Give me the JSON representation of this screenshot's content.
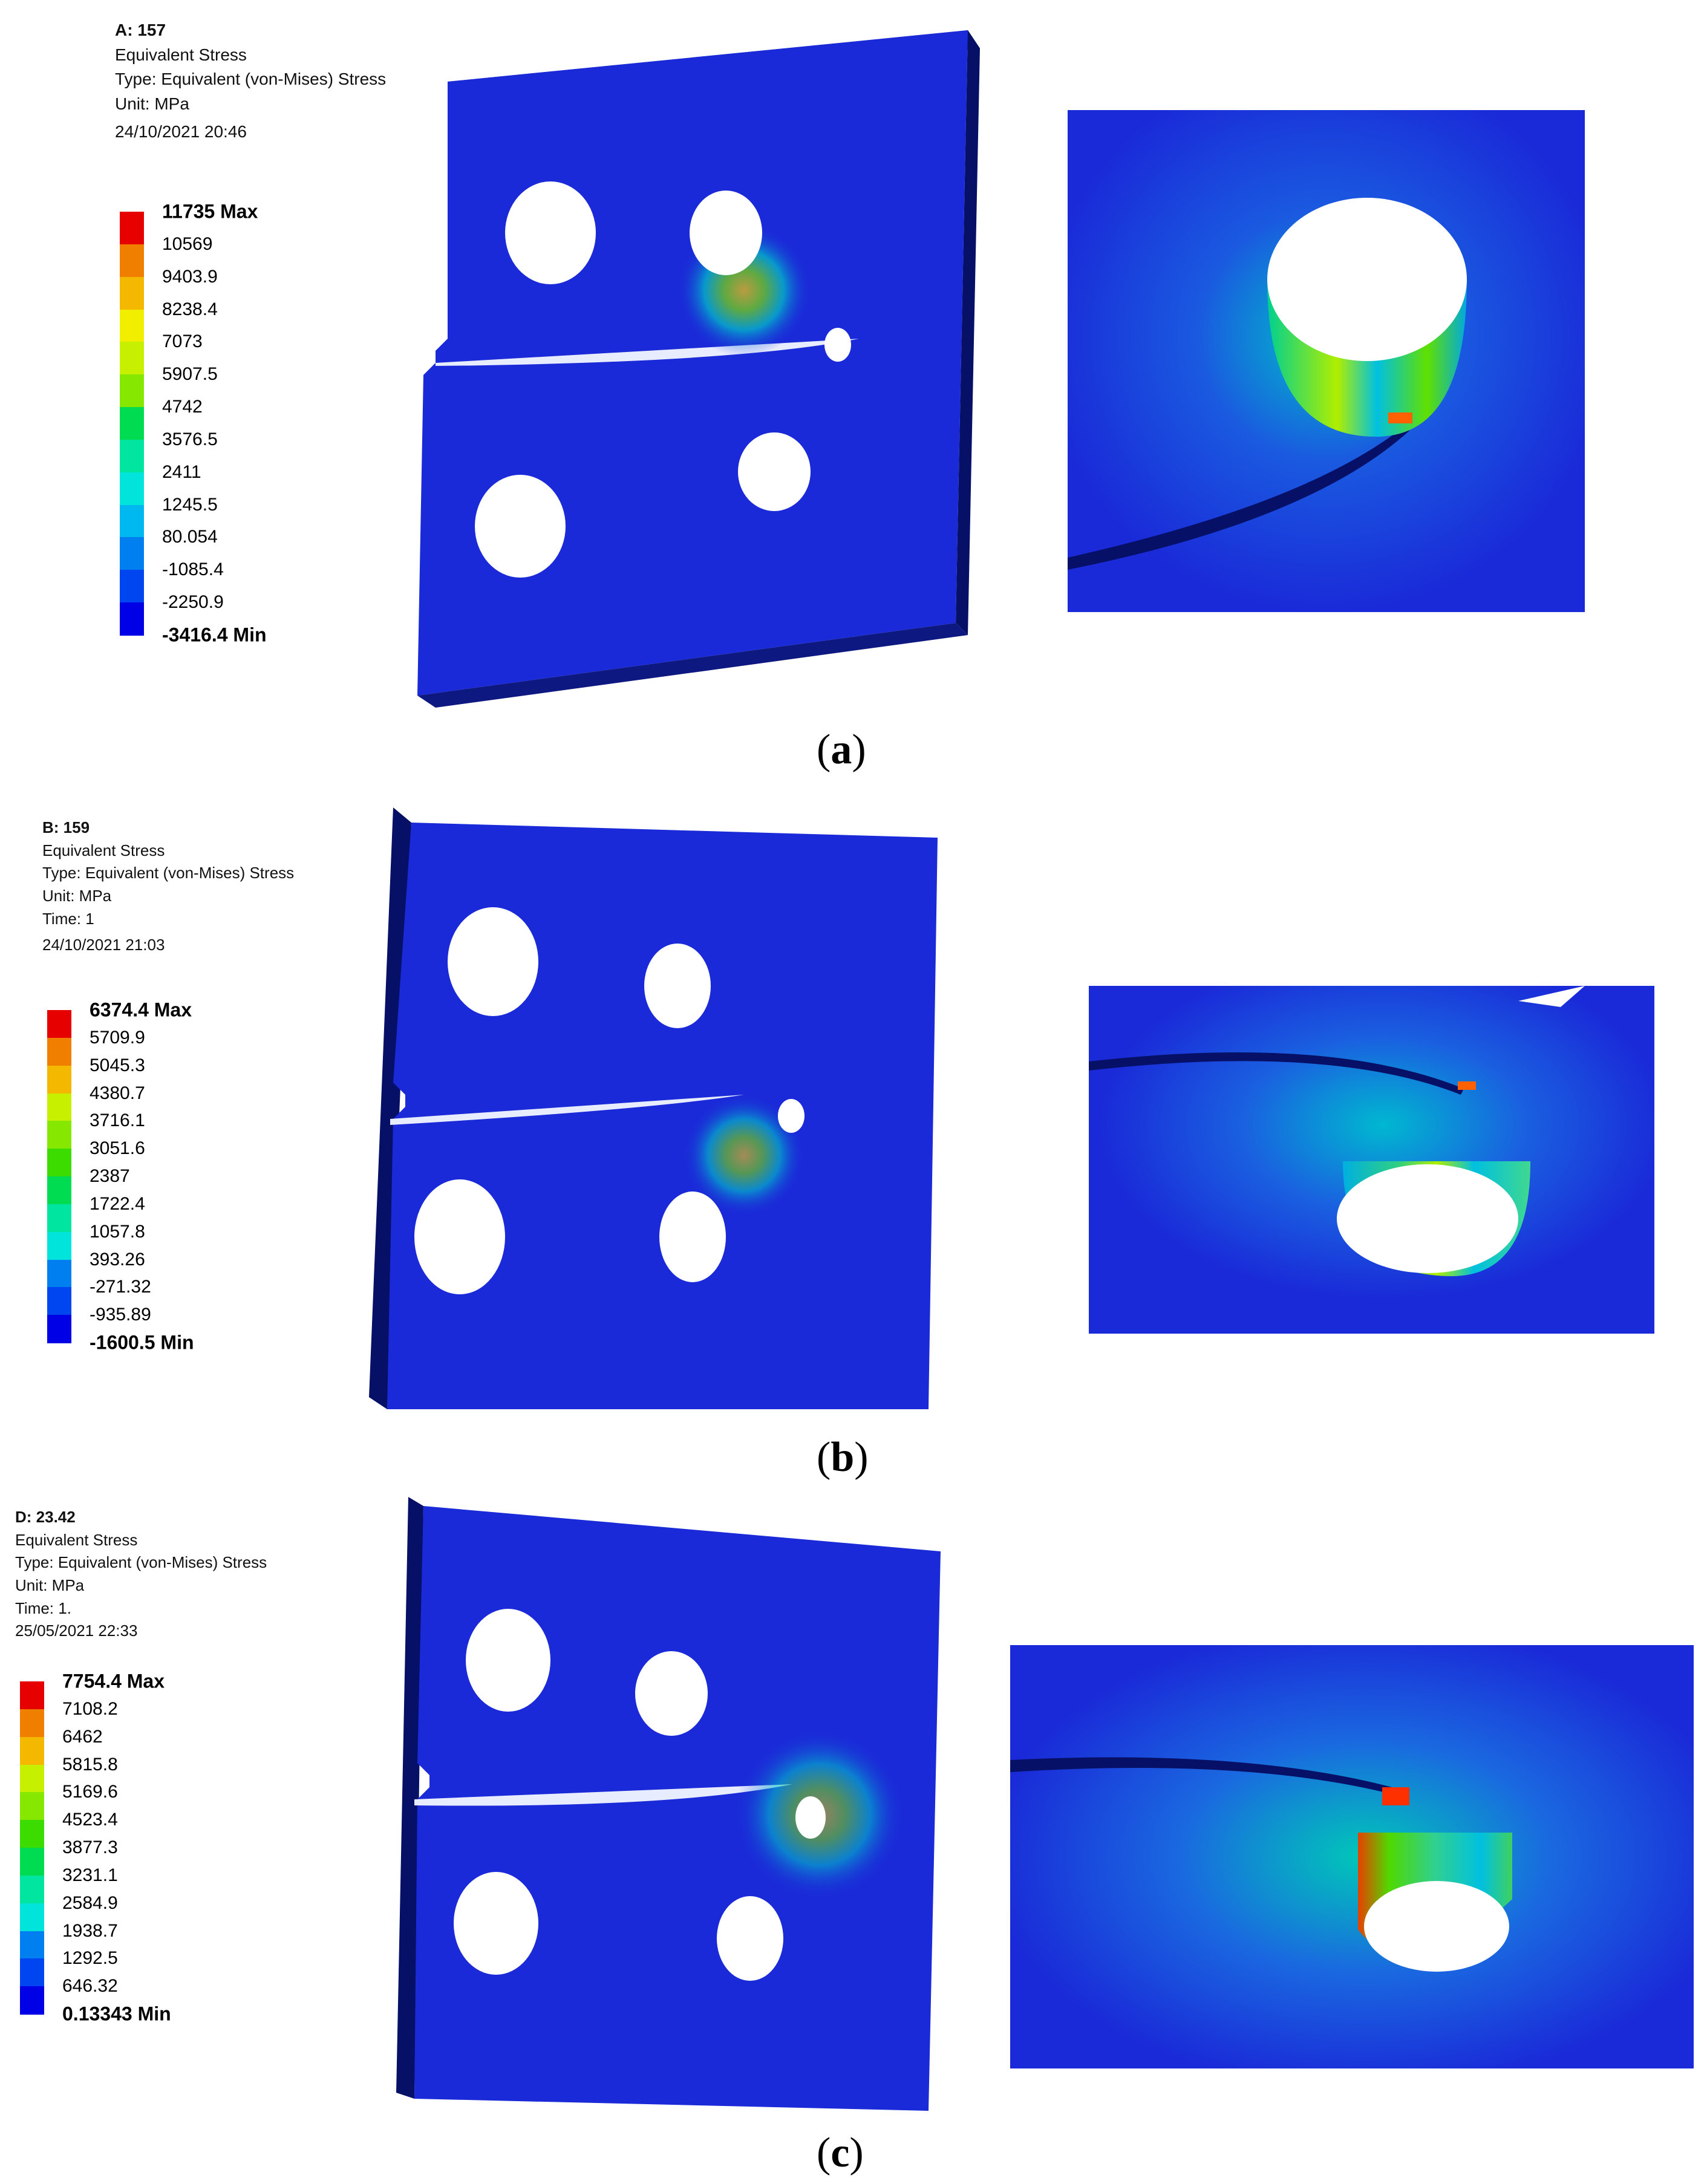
{
  "panels": [
    {
      "id": "a",
      "caption_letter": "a",
      "header": {
        "title": "A: 157",
        "line1": "Equivalent Stress",
        "line2": "Type: Equivalent (von-Mises) Stress",
        "line3": "Unit: MPa",
        "line4": "",
        "date": "24/10/2021 20:46"
      },
      "legend": [
        "11735 Max",
        "10569",
        "9403.9",
        "8238.4",
        "7073",
        "5907.5",
        "4742",
        "3576.5",
        "2411",
        "1245.5",
        "80.054",
        "-1085.4",
        "-2250.9",
        "-3416.4 Min"
      ]
    },
    {
      "id": "b",
      "caption_letter": "b",
      "header": {
        "title": "B: 159",
        "line1": "Equivalent Stress",
        "line2": "Type: Equivalent (von-Mises) Stress",
        "line3": "Unit: MPa",
        "line4": "Time: 1",
        "date": "24/10/2021 21:03"
      },
      "legend": [
        "6374.4 Max",
        "5709.9",
        "5045.3",
        "4380.7",
        "3716.1",
        "3051.6",
        "2387",
        "1722.4",
        "1057.8",
        "393.26",
        "-271.32",
        "-935.89",
        "-1600.5 Min"
      ]
    },
    {
      "id": "c",
      "caption_letter": "c",
      "header": {
        "title": "D: 23.42",
        "line1": "Equivalent Stress",
        "line2": "Type: Equivalent (von-Mises) Stress",
        "line3": "Unit: MPa",
        "line4": "Time: 1.",
        "date": "25/05/2021 22:33"
      },
      "legend": [
        "7754.4 Max",
        "7108.2",
        "6462",
        "5815.8",
        "5169.6",
        "4523.4",
        "3877.3",
        "3231.1",
        "2584.9",
        "1938.7",
        "1292.5",
        "646.32",
        "0.13343 Min"
      ]
    }
  ],
  "colors": {
    "legend_scale": [
      "#e60000",
      "#f07f00",
      "#f5b800",
      "#f2ee00",
      "#c6f000",
      "#86e800",
      "#3cdc00",
      "#00dc52",
      "#00e6a0",
      "#00e4dc",
      "#00b8f0",
      "#0080f0",
      "#0046f0",
      "#0000e6"
    ],
    "plate_face": "#1a2ad8",
    "plate_edge": "#0d1880",
    "plate_dark": "#061066"
  }
}
